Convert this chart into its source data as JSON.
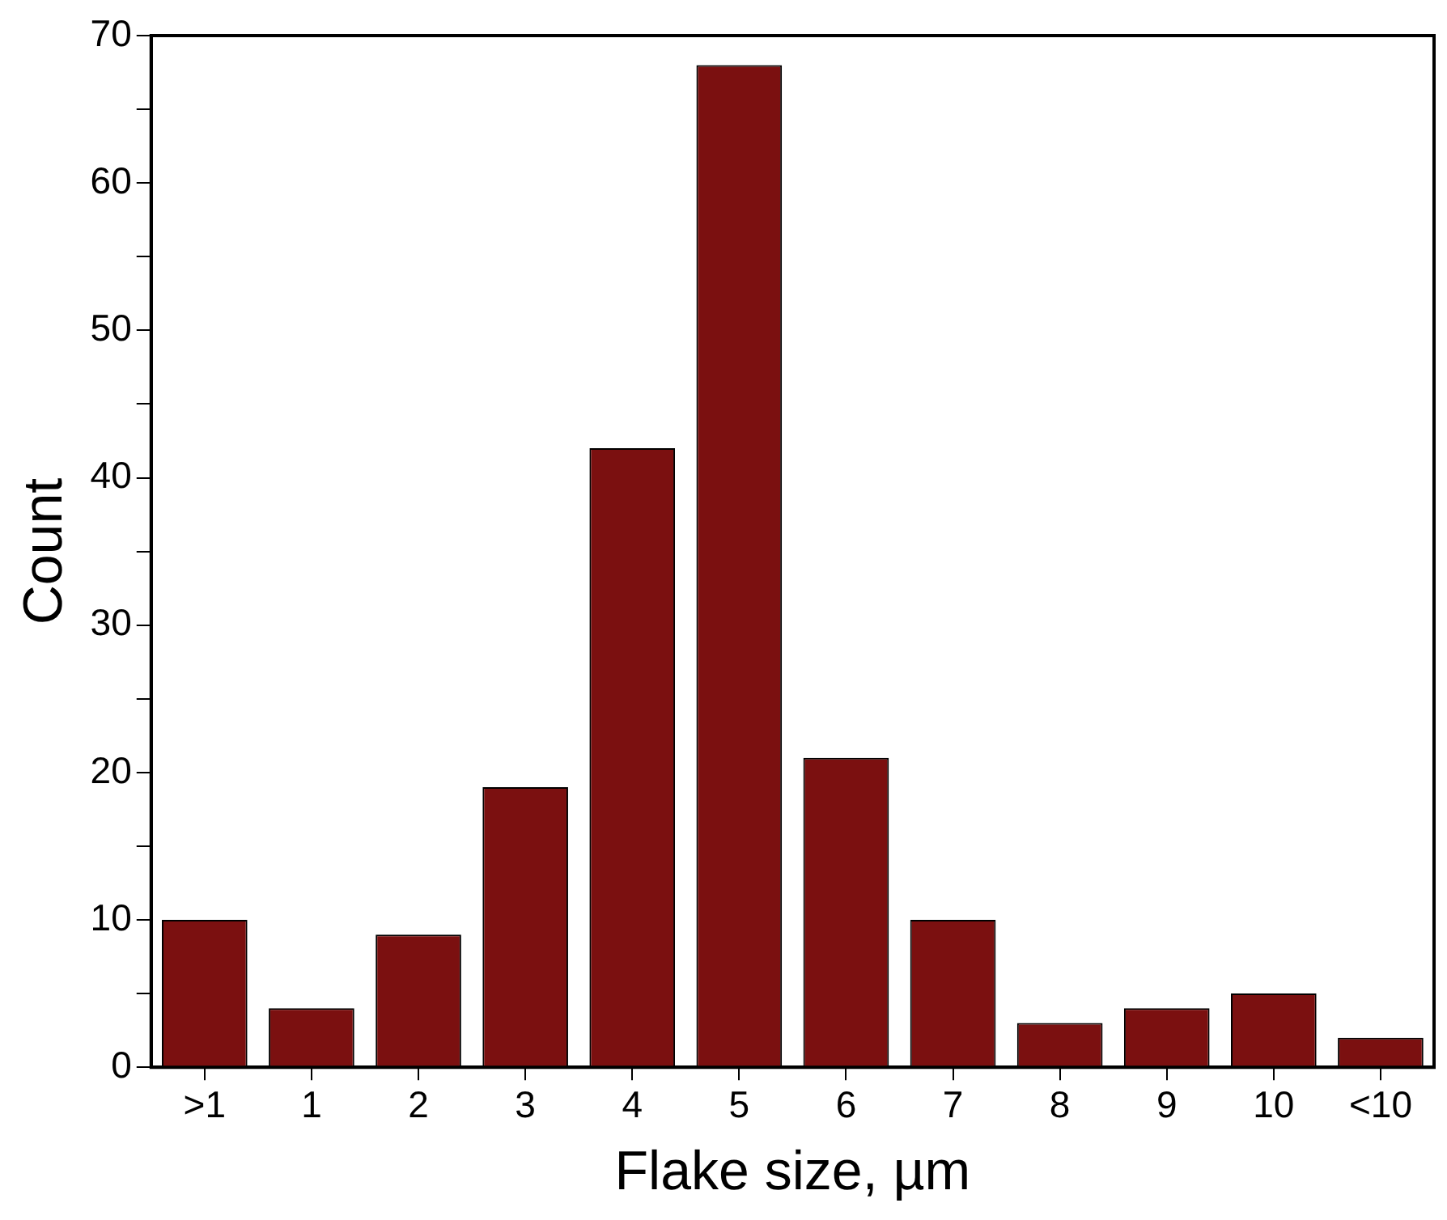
{
  "chart_data": {
    "type": "bar",
    "xlabel": "Flake size, µm",
    "ylabel": "Count",
    "categories": [
      ">1",
      "1",
      "2",
      "3",
      "4",
      "5",
      "6",
      "7",
      "8",
      "9",
      "10",
      "<10"
    ],
    "values": [
      10,
      4,
      9,
      19,
      42,
      68,
      21,
      10,
      3,
      4,
      5,
      2
    ],
    "color": "#7b1010",
    "ylim": [
      0,
      70
    ],
    "yticks": [
      0,
      {
        "value": 5,
        "label": null
      },
      10,
      {
        "value": 15,
        "label": null
      },
      20,
      {
        "value": 25,
        "label": null
      },
      30,
      {
        "value": 35,
        "label": null
      },
      40,
      {
        "value": 45,
        "label": null
      },
      50,
      {
        "value": 55,
        "label": null
      },
      60,
      {
        "value": 65,
        "label": null
      },
      70
    ],
    "grid": false,
    "legend": false
  }
}
